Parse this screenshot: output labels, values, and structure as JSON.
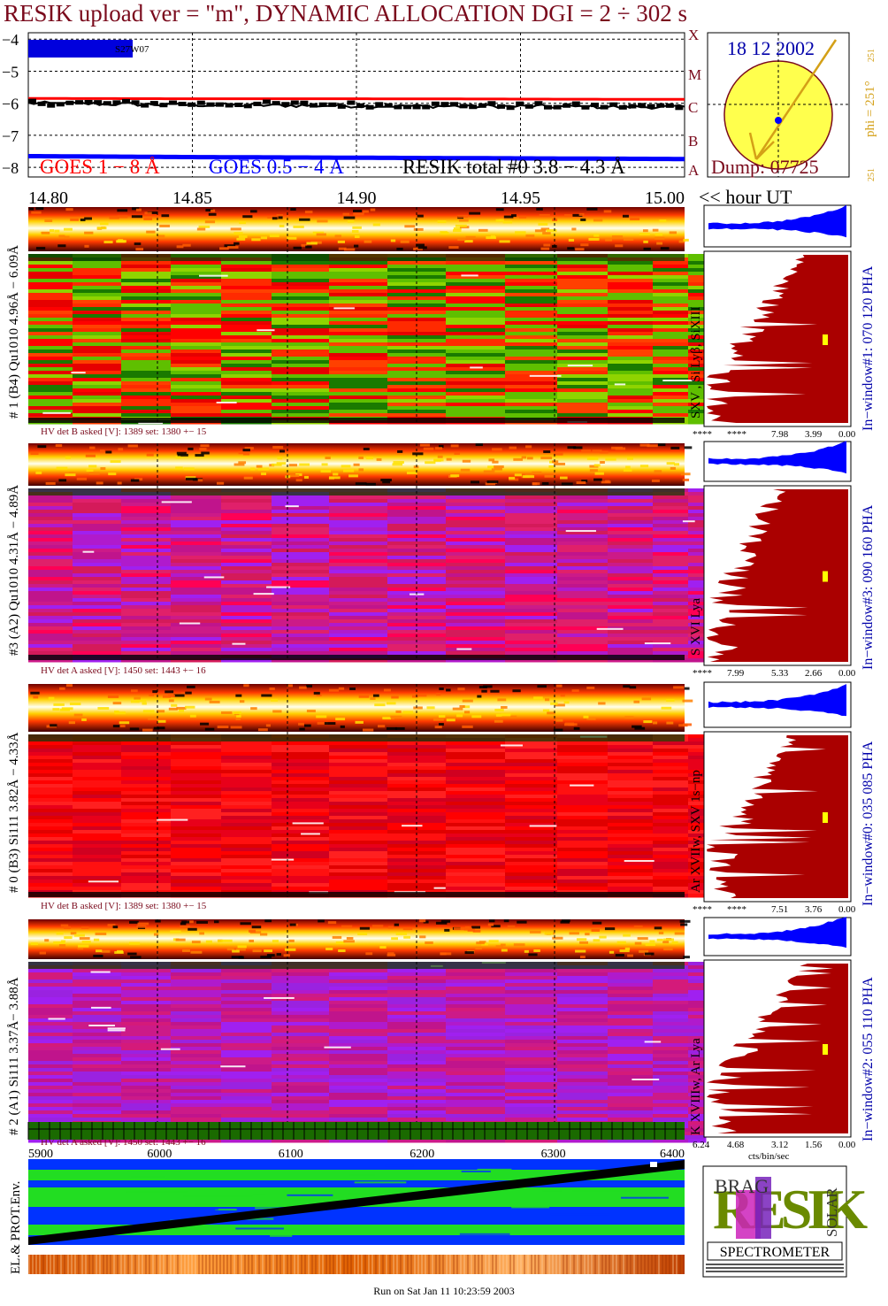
{
  "title": "RESIK upload ver = \"m\", DYNAMIC ALLOCATION  DGI =   2 ÷ 302 s",
  "footer": "Run on Sat Jan 11 10:23:59 2003",
  "colors": {
    "title": "#7a0a1c",
    "goes_long": "#ff0000",
    "goes_short": "#0000ff",
    "resik_total": "#000000",
    "disk": "#ffff4d",
    "histogram_fill": "#aa0000",
    "histogram_short": "#0000ff",
    "phi_label": "#d4a017",
    "inwindow_label": "#0000aa"
  },
  "lightcurve": {
    "y_ticks": [
      "−4",
      "−5",
      "−6",
      "−7",
      "−8"
    ],
    "y_range": [
      -8.3,
      -3.8
    ],
    "x_range": [
      14.8,
      15.0
    ],
    "x_ticks": [
      "14.80",
      "14.85",
      "14.90",
      "14.95",
      "15.00"
    ],
    "x_axis_label": "<< hour UT",
    "class_labels": [
      "A",
      "B",
      "C",
      "M",
      "X"
    ],
    "event_label": "S27W07",
    "legend": {
      "goes_long": "GOES 1 − 8 Å",
      "goes_short": "GOES 0.5 − 4 Å",
      "resik": "RESIK total #0  3.8 − 4.3 Å"
    }
  },
  "chart_data": {
    "type": "line",
    "x_unit": "hour UT",
    "xlim": [
      14.8,
      15.0
    ],
    "ylim": [
      -8.3,
      -3.8
    ],
    "series": [
      {
        "name": "GOES 1 − 8 Å",
        "x": [
          14.8,
          14.85,
          14.9,
          14.95,
          15.0
        ],
        "values": [
          -5.85,
          -5.86,
          -5.86,
          -5.87,
          -5.88
        ]
      },
      {
        "name": "GOES 0.5 − 4 Å",
        "x": [
          14.8,
          14.85,
          14.9,
          14.95,
          15.0
        ],
        "values": [
          -7.65,
          -7.68,
          -7.7,
          -7.72,
          -7.74
        ]
      },
      {
        "name": "RESIK total #0  3.8 − 4.3 Å",
        "x": [
          14.8,
          14.85,
          14.9,
          14.95,
          15.0
        ],
        "values": [
          -6.0,
          -6.05,
          -6.08,
          -6.1,
          -6.12
        ]
      }
    ]
  },
  "sun": {
    "date": "18 12 2002",
    "dump": "Dump: 07725",
    "phi": "phi = 251°",
    "phi_small": "251",
    "phi_bottom": "251"
  },
  "panels": [
    {
      "left_label": "# 1 (B4) Qu1010 4.96Å − 6.09Å",
      "line_label": "SXV , Si Lyβ, SiXIII",
      "right_label": "In−window#1:  070 120 PHA",
      "hv": "HV det B asked [V]:  1389 set:  1380 +−   15",
      "hist_ticks": [
        "****",
        "****",
        "7.98",
        "3.99",
        "0.00"
      ],
      "palette": [
        "#1a7a00",
        "#5fbf00",
        "#8fd400",
        "#ff2a00",
        "#e60000",
        "#5fbf00",
        "#ff4000",
        "#ff0000"
      ],
      "base_level": 0.35
    },
    {
      "left_label": "#3 (A2) Qu1010  4.31Å − 4.89Å",
      "line_label": "S XVI Lya",
      "right_label": "In−window#3:  090 160 PHA",
      "hv": "HV det A asked [V]:  1450 set:  1443 +−   16",
      "hist_ticks": [
        "****",
        "7.99",
        "5.33",
        "2.66",
        "0.00"
      ],
      "palette": [
        "#cc1a88",
        "#e0206a",
        "#b01acc",
        "#d41a5a",
        "#a020f0",
        "#ff0055",
        "#c0148c"
      ],
      "base_level": 0.55
    },
    {
      "left_label": "# 0 (B3) Si111  3.82Å − 4.33Å",
      "line_label": "Ar XVIIw,  SXV 1s−np",
      "right_label": "In−window#0:  035 085 PHA",
      "hv": "HV det B asked [V]:  1389 set:  1380 +−   15",
      "hist_ticks": [
        "****",
        "****",
        "7.51",
        "3.76",
        "0.00"
      ],
      "palette": [
        "#ff0000",
        "#e8001a",
        "#ff1010",
        "#d00020",
        "#ff2020",
        "#e00000"
      ],
      "base_level": 0.45
    },
    {
      "left_label": "# 2 (A1) Si111  3.37Å− 3.88Å",
      "line_label": "K XVIIIw, Ar Lya",
      "right_label": "In−window#2:  055 110 PHA",
      "hv": "HV det A asked [V]:  1450 set:  1443 +−   16",
      "hist_ticks": [
        "6.24",
        "4.68",
        "3.12",
        "1.56",
        "0.00"
      ],
      "hist_unit": "cts/bin/sec",
      "palette": [
        "#b01acc",
        "#cc1a88",
        "#a020f0",
        "#d41a7a",
        "#9a22e0",
        "#c0148c"
      ],
      "base_level": 0.35
    }
  ],
  "bottom": {
    "x_ticks": [
      "5900",
      "6000",
      "6100",
      "6200",
      "6300",
      "6400"
    ],
    "y_label": "EL.& PROT.Env."
  },
  "logo": {
    "big": "RESIK",
    "small_top": "BRAG",
    "small_right": "SOLAR",
    "bottom": "SPECTROMETER"
  }
}
